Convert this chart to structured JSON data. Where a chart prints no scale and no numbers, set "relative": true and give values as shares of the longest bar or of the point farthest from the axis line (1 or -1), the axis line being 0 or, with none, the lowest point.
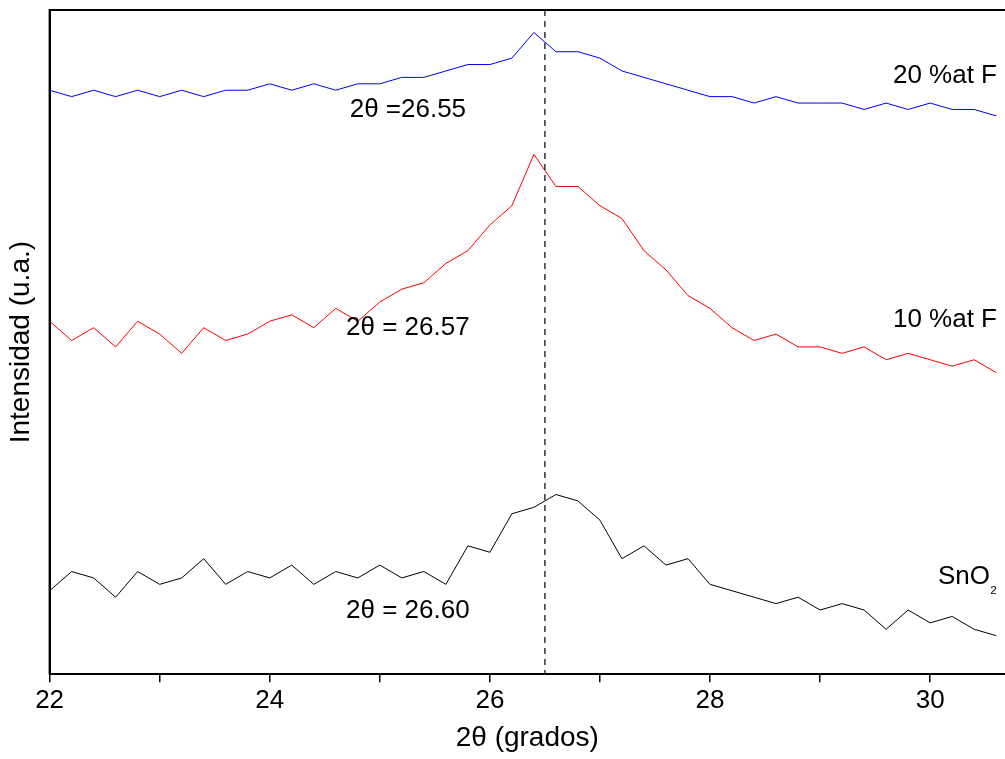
{
  "chart_data": {
    "type": "line",
    "relative": true,
    "xlabel": "2θ (grados)",
    "ylabel": "Intensidad (u.a.)",
    "x": [
      22.0,
      22.2,
      22.4,
      22.6,
      22.8,
      23.0,
      23.2,
      23.4,
      23.6,
      23.8,
      24.0,
      24.2,
      24.4,
      24.6,
      24.8,
      25.0,
      25.2,
      25.4,
      25.6,
      25.8,
      26.0,
      26.2,
      26.4,
      26.6,
      26.8,
      27.0,
      27.2,
      27.4,
      27.6,
      27.8,
      28.0,
      28.2,
      28.4,
      28.6,
      28.8,
      29.0,
      29.2,
      29.4,
      29.6,
      29.8,
      30.0,
      30.2,
      30.4,
      30.6
    ],
    "xlim": [
      22,
      30.68
    ],
    "xticks": [
      22,
      {
        "value": 23,
        "label": null
      },
      24,
      {
        "value": 25,
        "label": null
      },
      26,
      {
        "value": 27,
        "label": null
      },
      28,
      {
        "value": 29,
        "label": null
      },
      30
    ],
    "series": [
      {
        "name": "20 %at F",
        "color": "#0000ff",
        "values": [
          0.91,
          0.9,
          0.91,
          0.9,
          0.91,
          0.9,
          0.91,
          0.9,
          0.91,
          0.91,
          0.92,
          0.91,
          0.92,
          0.91,
          0.92,
          0.92,
          0.93,
          0.93,
          0.94,
          0.95,
          0.95,
          0.96,
          1.0,
          0.97,
          0.97,
          0.96,
          0.94,
          0.93,
          0.92,
          0.91,
          0.9,
          0.9,
          0.89,
          0.9,
          0.89,
          0.89,
          0.89,
          0.88,
          0.89,
          0.88,
          0.89,
          0.88,
          0.88,
          0.87
        ]
      },
      {
        "name": "10 %at F",
        "color": "#ff0000",
        "values": [
          0.55,
          0.52,
          0.54,
          0.51,
          0.55,
          0.53,
          0.5,
          0.54,
          0.52,
          0.53,
          0.55,
          0.56,
          0.54,
          0.57,
          0.55,
          0.58,
          0.6,
          0.61,
          0.64,
          0.66,
          0.7,
          0.73,
          0.81,
          0.76,
          0.76,
          0.73,
          0.71,
          0.66,
          0.63,
          0.59,
          0.57,
          0.54,
          0.52,
          0.53,
          0.51,
          0.51,
          0.5,
          0.51,
          0.49,
          0.5,
          0.49,
          0.48,
          0.49,
          0.47
        ]
      },
      {
        "name": "SnO₂",
        "color": "#000000",
        "values": [
          0.13,
          0.16,
          0.15,
          0.12,
          0.16,
          0.14,
          0.15,
          0.18,
          0.14,
          0.16,
          0.15,
          0.17,
          0.14,
          0.16,
          0.15,
          0.17,
          0.15,
          0.16,
          0.14,
          0.2,
          0.19,
          0.25,
          0.26,
          0.28,
          0.27,
          0.24,
          0.18,
          0.2,
          0.17,
          0.18,
          0.14,
          0.13,
          0.12,
          0.11,
          0.12,
          0.1,
          0.11,
          0.1,
          0.07,
          0.1,
          0.08,
          0.09,
          0.07,
          0.06
        ]
      }
    ],
    "ref_lines": [
      {
        "axis": "x",
        "value": 26.5,
        "color": "#000000",
        "line_style": "dashed"
      }
    ],
    "annotations": [
      "2θ =26.55",
      "2θ = 26.57",
      "2θ = 26.60"
    ],
    "grid": false,
    "legend": false,
    "marker": "none",
    "line_style": "solid"
  }
}
